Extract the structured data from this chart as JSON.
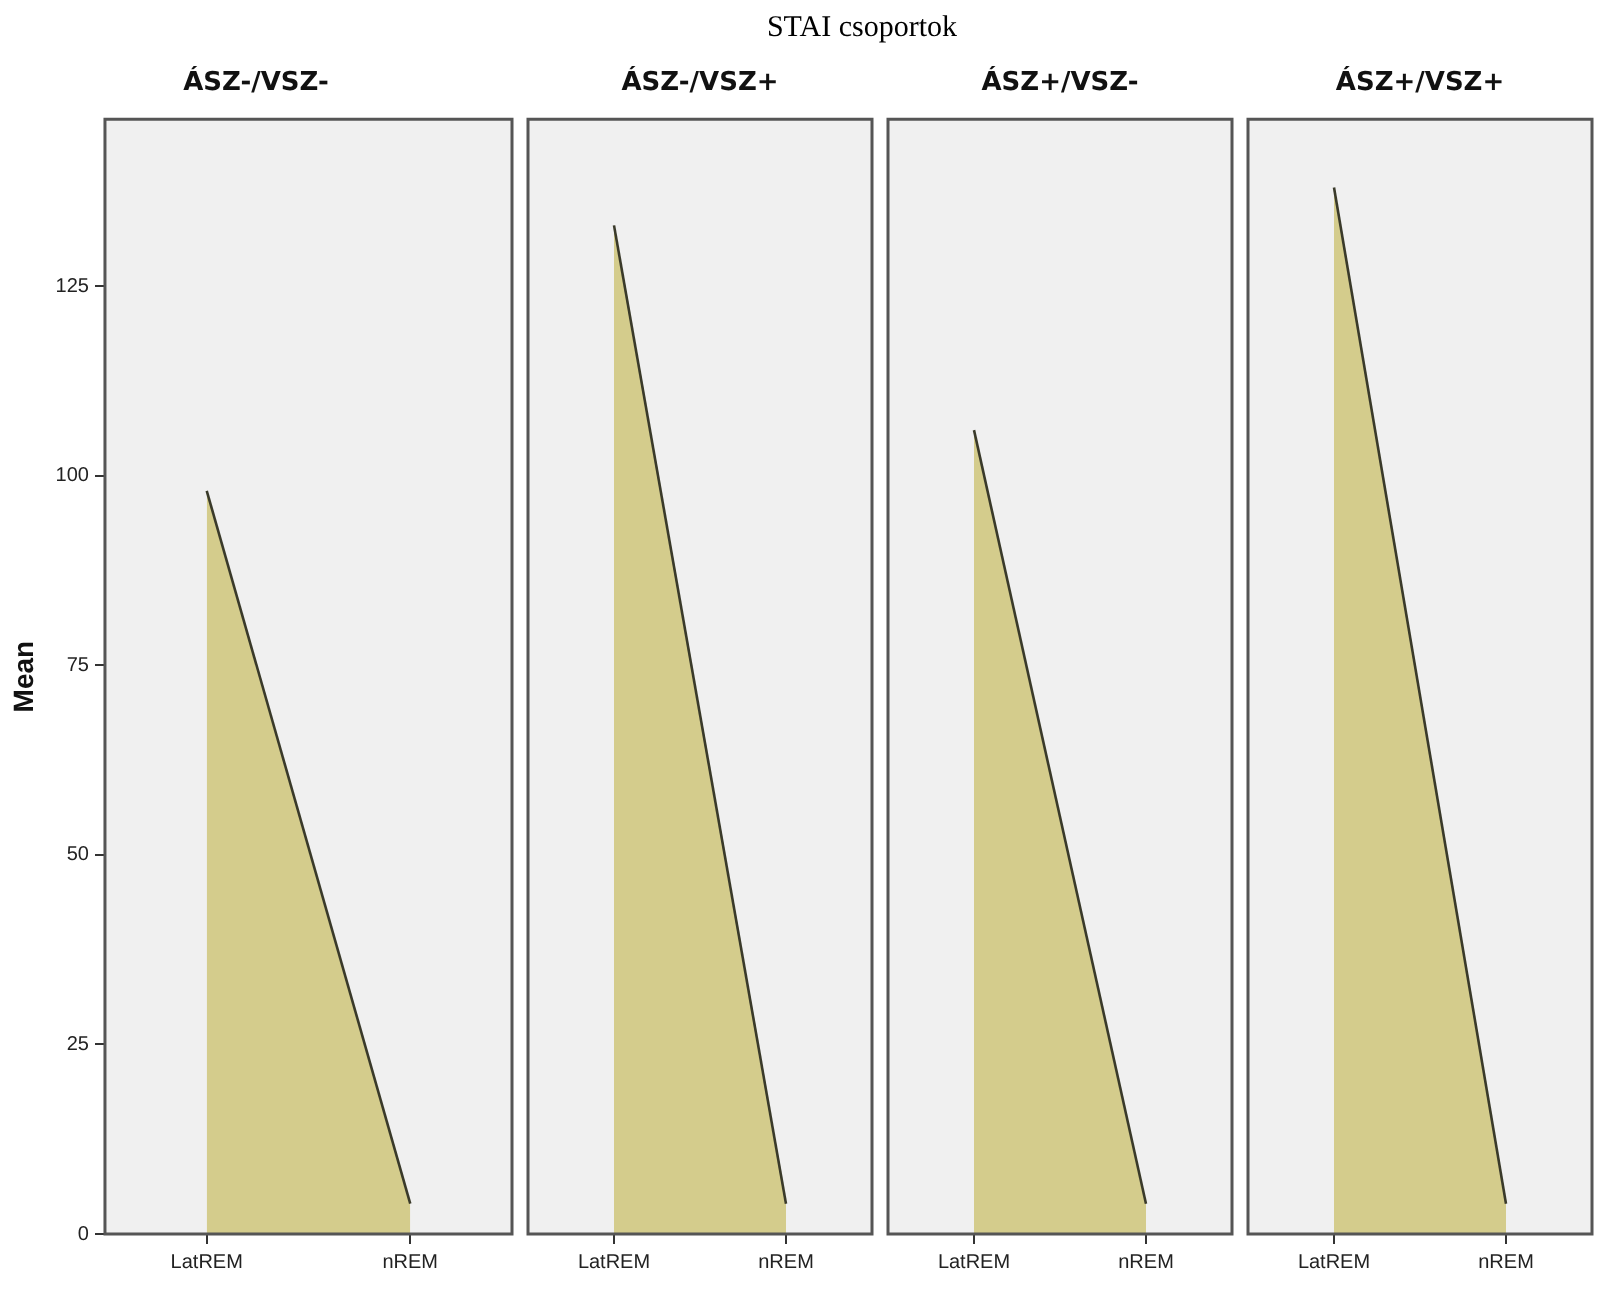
{
  "chart_data": [
    {
      "type": "area",
      "title": "ÁSZ-/VSZ-",
      "ylabel": "Mean",
      "annotations": [
        "STAI csoportok"
      ],
      "categories": [
        "LatREM",
        "nREM"
      ],
      "series": [
        {
          "color": "#d4cc8c",
          "values": [
            98,
            4
          ]
        }
      ],
      "ylim": [
        0,
        147
      ],
      "yticks": [
        0,
        25,
        50,
        75,
        100,
        125
      ],
      "grid": false,
      "legend": false,
      "marker": "none"
    },
    {
      "type": "area",
      "title": "ÁSZ-/VSZ+",
      "categories": [
        "LatREM",
        "nREM"
      ],
      "series": [
        {
          "color": "#d4cc8c",
          "values": [
            133,
            4
          ]
        }
      ],
      "ylim": [
        0,
        147
      ],
      "yticks": [
        0,
        25,
        50,
        75,
        100,
        125
      ],
      "tick_labels": "x",
      "grid": false,
      "legend": false,
      "marker": "none"
    },
    {
      "type": "area",
      "title": "ÁSZ+/VSZ-",
      "categories": [
        "LatREM",
        "nREM"
      ],
      "series": [
        {
          "color": "#d4cc8c",
          "values": [
            106,
            4
          ]
        }
      ],
      "ylim": [
        0,
        147
      ],
      "yticks": [
        0,
        25,
        50,
        75,
        100,
        125
      ],
      "tick_labels": "x",
      "grid": false,
      "legend": false,
      "marker": "none"
    },
    {
      "type": "area",
      "title": "ÁSZ+/VSZ+",
      "categories": [
        "LatREM",
        "nREM"
      ],
      "series": [
        {
          "color": "#d4cc8c",
          "values": [
            138,
            4
          ]
        }
      ],
      "ylim": [
        0,
        147
      ],
      "yticks": [
        0,
        25,
        50,
        75,
        100,
        125
      ],
      "tick_labels": "x",
      "grid": false,
      "legend": false,
      "marker": "none"
    }
  ]
}
